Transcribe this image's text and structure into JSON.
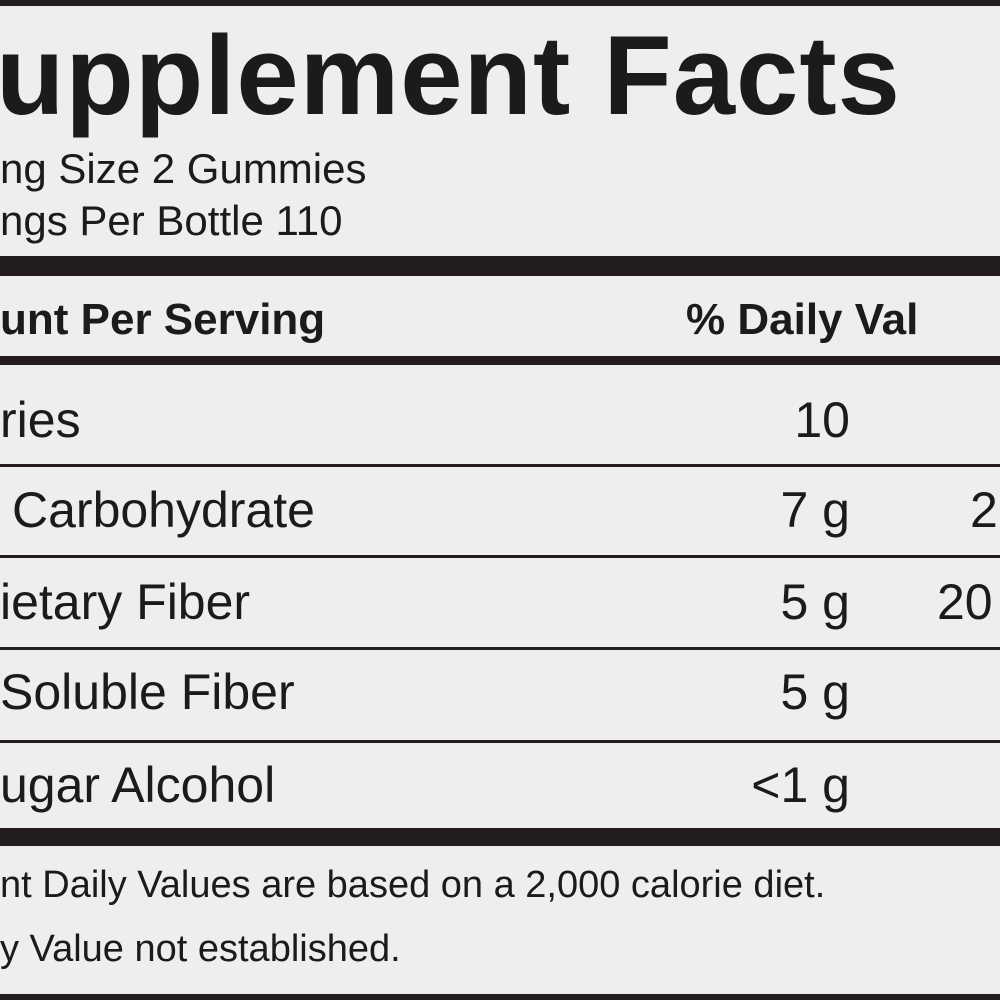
{
  "header": {
    "title": "upplement Facts"
  },
  "serving": {
    "size": "ng Size 2 Gummies",
    "per_container": "ngs Per Bottle 110"
  },
  "table": {
    "header": [
      "unt Per Serving",
      "% Daily Val"
    ],
    "rows": [
      [
        "ries",
        "10"
      ],
      [
        "Carbohydrate",
        "7 g",
        "2"
      ],
      [
        "ietary Fiber",
        "5 g",
        "20"
      ],
      [
        "Soluble Fiber",
        "5 g"
      ],
      [
        "ugar Alcohol",
        "<1 g"
      ]
    ]
  },
  "footnotes": [
    "nt Daily Values are based on a 2,000 calorie diet.",
    "y Value not established."
  ]
}
